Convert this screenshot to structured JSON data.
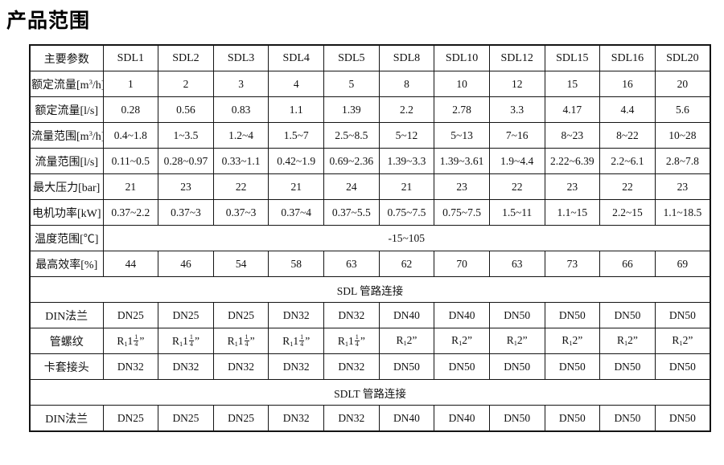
{
  "page": {
    "title": "产品范围"
  },
  "table": {
    "header": {
      "param_label": "主要参数",
      "models": [
        "SDL1",
        "SDL2",
        "SDL3",
        "SDL4",
        "SDL5",
        "SDL8",
        "SDL10",
        "SDL12",
        "SDL15",
        "SDL16",
        "SDL20"
      ]
    },
    "rows": [
      {
        "type": "data",
        "label": "额定流量[m^3^/h]",
        "cells": [
          "1",
          "2",
          "3",
          "4",
          "5",
          "8",
          "10",
          "12",
          "15",
          "16",
          "20"
        ]
      },
      {
        "type": "data",
        "label": "额定流量[l/s]",
        "cells": [
          "0.28",
          "0.56",
          "0.83",
          "1.1",
          "1.39",
          "2.2",
          "2.78",
          "3.3",
          "4.17",
          "4.4",
          "5.6"
        ]
      },
      {
        "type": "data",
        "label": "流量范围[m^3^/h]",
        "cells": [
          "0.4~1.8",
          "1~3.5",
          "1.2~4",
          "1.5~7",
          "2.5~8.5",
          "5~12",
          "5~13",
          "7~16",
          "8~23",
          "8~22",
          "10~28"
        ]
      },
      {
        "type": "data",
        "label": "流量范围[l/s]",
        "cells": [
          "0.11~0.5",
          "0.28~0.97",
          "0.33~1.1",
          "0.42~1.9",
          "0.69~2.36",
          "1.39~3.3",
          "1.39~3.61",
          "1.9~4.4",
          "2.22~6.39",
          "2.2~6.1",
          "2.8~7.8"
        ]
      },
      {
        "type": "data",
        "label": "最大压力[bar]",
        "cells": [
          "21",
          "23",
          "22",
          "21",
          "24",
          "21",
          "23",
          "22",
          "23",
          "22",
          "23"
        ]
      },
      {
        "type": "data",
        "label": "电机功率[kW]",
        "cells": [
          "0.37~2.2",
          "0.37~3",
          "0.37~3",
          "0.37~4",
          "0.37~5.5",
          "0.75~7.5",
          "0.75~7.5",
          "1.5~11",
          "1.1~15",
          "2.2~15",
          "1.1~18.5"
        ]
      },
      {
        "type": "span_label",
        "label": "温度范围[℃]",
        "value": "-15~105"
      },
      {
        "type": "data",
        "label": "最高效率[%]",
        "cells": [
          "44",
          "46",
          "54",
          "58",
          "63",
          "62",
          "70",
          "63",
          "73",
          "66",
          "69"
        ]
      },
      {
        "type": "full_span",
        "value": "SDL 管路连接"
      },
      {
        "type": "data",
        "label": "DIN法兰",
        "cells": [
          "DN25",
          "DN25",
          "DN25",
          "DN32",
          "DN32",
          "DN40",
          "DN40",
          "DN50",
          "DN50",
          "DN50",
          "DN50"
        ]
      },
      {
        "type": "data",
        "label": "管螺纹",
        "cells": [
          "R_1_1{1/4}”",
          "R_1_1{1/4}”",
          "R_1_1{1/4}”",
          "R_1_1{1/4}”",
          "R_1_1{1/4}”",
          "R_1_2”",
          "R_1_2”",
          "R_1_2”",
          "R_1_2”",
          "R_1_2”",
          "R_1_2”"
        ]
      },
      {
        "type": "data",
        "label": "卡套接头",
        "cells": [
          "DN32",
          "DN32",
          "DN32",
          "DN32",
          "DN32",
          "DN50",
          "DN50",
          "DN50",
          "DN50",
          "DN50",
          "DN50"
        ]
      },
      {
        "type": "full_span",
        "value": "SDLT 管路连接"
      },
      {
        "type": "data",
        "label": "DIN法兰",
        "cells": [
          "DN25",
          "DN25",
          "DN25",
          "DN32",
          "DN32",
          "DN40",
          "DN40",
          "DN50",
          "DN50",
          "DN50",
          "DN50"
        ]
      }
    ]
  }
}
